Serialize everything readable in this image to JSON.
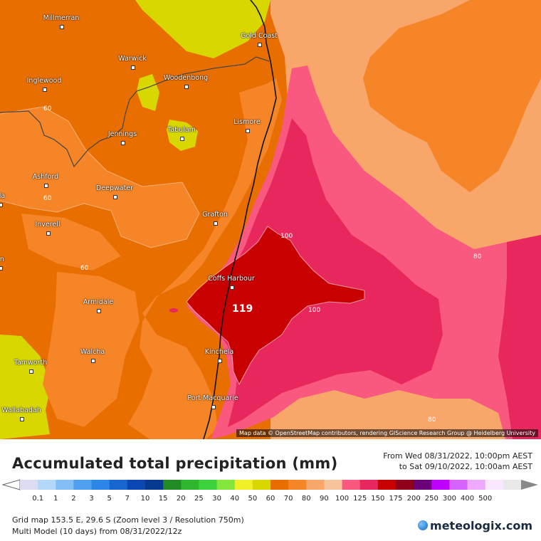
{
  "map": {
    "attribution": "Map data © OpenStreetMap contributors, rendering GIScience Research Group @ Heidelberg University",
    "max_value_label": "119",
    "towns": [
      {
        "name": "Millmerran"
      },
      {
        "name": "Gold Coast"
      },
      {
        "name": "Warwick"
      },
      {
        "name": "Inglewood"
      },
      {
        "name": "Woodenbong"
      },
      {
        "name": "Lismore"
      },
      {
        "name": "Tabulam"
      },
      {
        "name": "Jennings"
      },
      {
        "name": "Ashford"
      },
      {
        "name": "Deepwater"
      },
      {
        "name": "lda"
      },
      {
        "name": "Grafton"
      },
      {
        "name": "Inverell"
      },
      {
        "name": "on"
      },
      {
        "name": "Coffs Harbour"
      },
      {
        "name": "Armidale"
      },
      {
        "name": "Kinchela"
      },
      {
        "name": "Walcha"
      },
      {
        "name": "Tamworth"
      },
      {
        "name": "Port Macquarie"
      },
      {
        "name": "Wallabadah"
      }
    ],
    "contour_labels": [
      "60",
      "60",
      "60",
      "100",
      "100",
      "80",
      "80"
    ]
  },
  "legend": {
    "title": "Accumulated total precipitation (mm)",
    "from_line": "From Wed 08/31/2022, 10:00pm AEST",
    "to_line": "to Sat 09/10/2022, 10:00am AEST",
    "values": [
      "0.1",
      "1",
      "2",
      "3",
      "5",
      "7",
      "10",
      "15",
      "20",
      "25",
      "30",
      "40",
      "50",
      "60",
      "70",
      "80",
      "90",
      "100",
      "125",
      "150",
      "175",
      "200",
      "250",
      "300",
      "400",
      "500"
    ],
    "colors": [
      "#dcdcf2",
      "#b4d8fa",
      "#82bff7",
      "#4fa1f0",
      "#2b86e8",
      "#1866d0",
      "#0b48b4",
      "#063a90",
      "#218c23",
      "#2fb62f",
      "#3cd23c",
      "#84e63a",
      "#f0f028",
      "#d8d800",
      "#e86e00",
      "#f58526",
      "#f9a66a",
      "#f7c39a",
      "#f9587f",
      "#e8285c",
      "#c80000",
      "#900018",
      "#6c0078",
      "#c000ff",
      "#d864ff",
      "#eeaaff",
      "#f9e8ff",
      "#e8e8e8"
    ],
    "grid_line": "Grid map 153.5 E, 29.6 S (Zoom level 3 / Resolution 750m)",
    "model_line": "Multi Model (10 days) from 08/31/2022/12z",
    "brand": "meteologix.com"
  }
}
